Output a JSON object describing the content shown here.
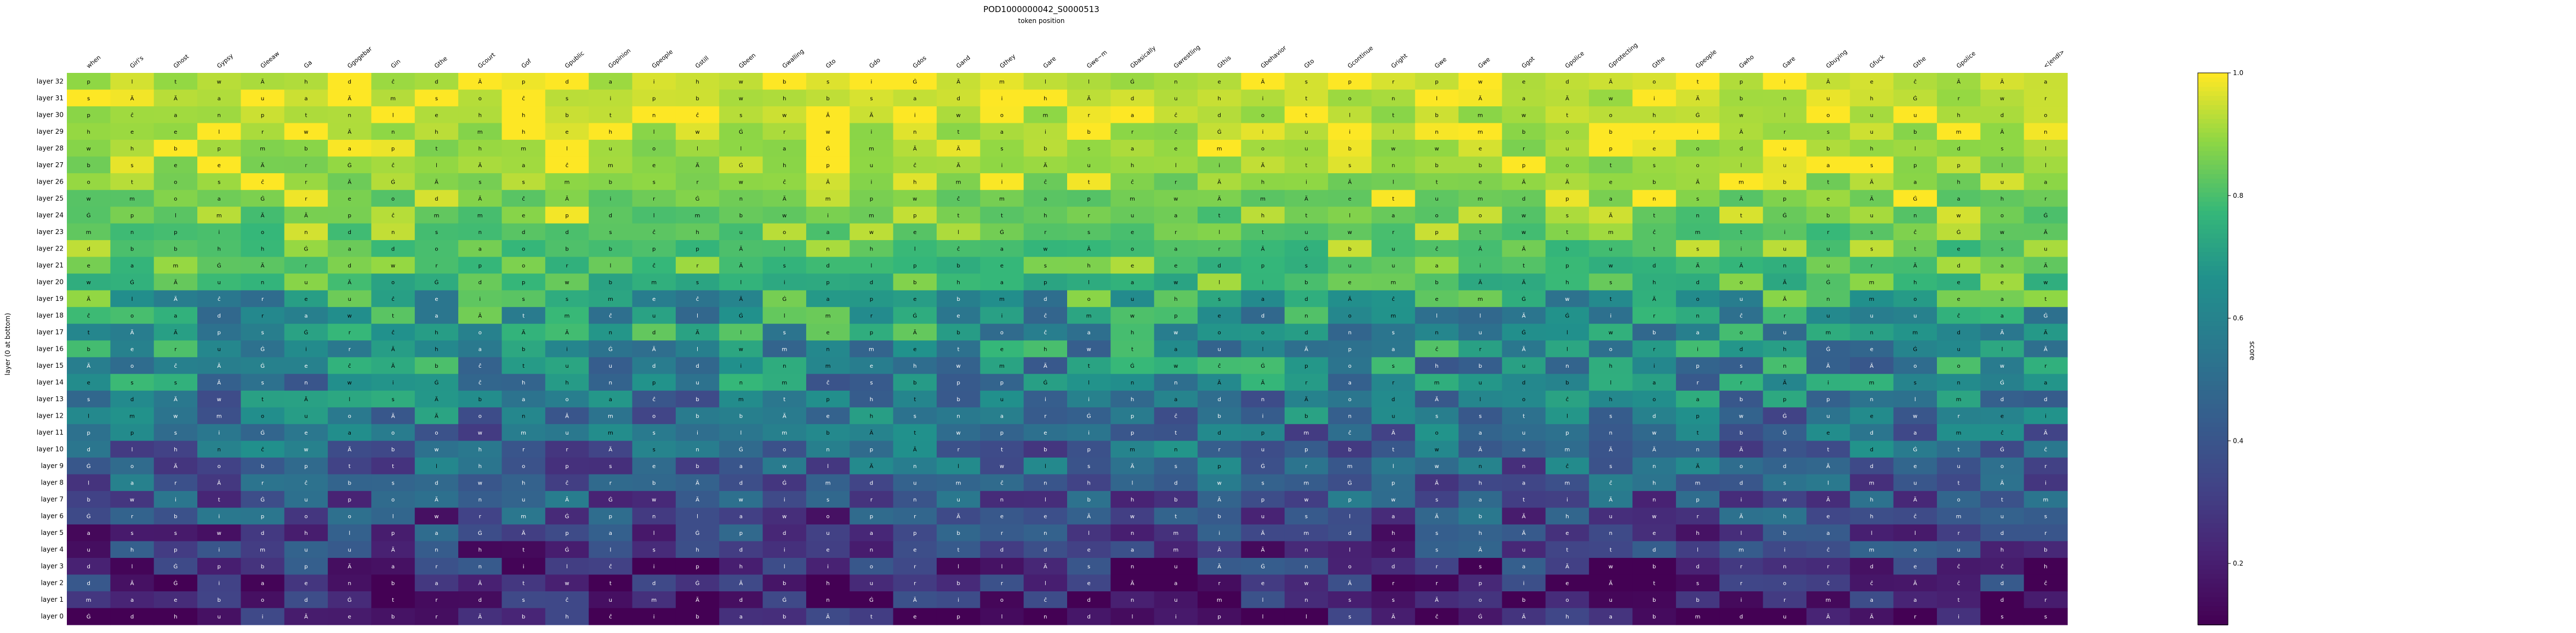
{
  "chart_data": {
    "type": "heatmap",
    "title": "POD1000000042_S0000513",
    "subtitle": "token position",
    "ylabel": "layer (0 at bottom)",
    "colorbar_label": "score",
    "colorbar_range": [
      0.1,
      1.0
    ],
    "colorbar_ticks": [
      "0.2",
      "0.4",
      "0.6",
      "0.8",
      "1.0"
    ],
    "colormap": "viridis",
    "x_labels": [
      "when",
      "Girl's",
      "Ghost",
      "Gypsy",
      "Gleeaw",
      "Ga",
      "Ggogebar",
      "Gin",
      "Gthe",
      "Gcourt",
      "Gof",
      "Gpublic",
      "Gopinion",
      "Gpeople",
      "Gstill",
      "Gbeen",
      "Gwalling",
      "Gto",
      "Gdo",
      "Gdos",
      "Gand",
      "Gthey",
      "Gare",
      "Gwe~m",
      "Gbasically",
      "Gwrestling",
      "Gthis",
      "Gbehavior",
      "Gto",
      "Gcontinue",
      "Gright",
      "Gwe",
      "Gwe",
      "Ggot",
      "Gpolice",
      "Gprotecting",
      "Gthe",
      "Gpeople",
      "Gwho",
      "Gare",
      "Gbuying",
      "Gfuck",
      "Gthe",
      "Gpolice",
      "",
      "<|endl>"
    ],
    "y_labels": [
      "layer 32",
      "layer 31",
      "layer 30",
      "layer 29",
      "layer 28",
      "layer 27",
      "layer 26",
      "layer 25",
      "layer 24",
      "layer 23",
      "layer 22",
      "layer 21",
      "layer 20",
      "layer 19",
      "layer 18",
      "layer 17",
      "layer 16",
      "layer 15",
      "layer 14",
      "layer 13",
      "layer 12",
      "layer 11",
      "layer 10",
      "layer 9",
      "layer 8",
      "layer 7",
      "layer 6",
      "layer 5",
      "layer 4",
      "layer 3",
      "layer 2",
      "layer 1",
      "layer 0"
    ],
    "cell_glyphs": [
      "Ä",
      "Ä",
      "ĉ",
      "Ġ",
      "s",
      "e",
      "n",
      "t",
      "r",
      "o",
      "p",
      "a",
      "m",
      "i",
      "w",
      "l",
      "h",
      "u",
      "d",
      "b"
    ],
    "row_level_profile": [
      0.88,
      0.88,
      0.87,
      0.86,
      0.85,
      0.83,
      0.81,
      0.79,
      0.77,
      0.74,
      0.72,
      0.7,
      0.68,
      0.66,
      0.62,
      0.6,
      0.58,
      0.56,
      0.54,
      0.5,
      0.47,
      0.44,
      0.42,
      0.38,
      0.35,
      0.32,
      0.28,
      0.25,
      0.2,
      0.16,
      0.13,
      0.1,
      0.06
    ]
  }
}
